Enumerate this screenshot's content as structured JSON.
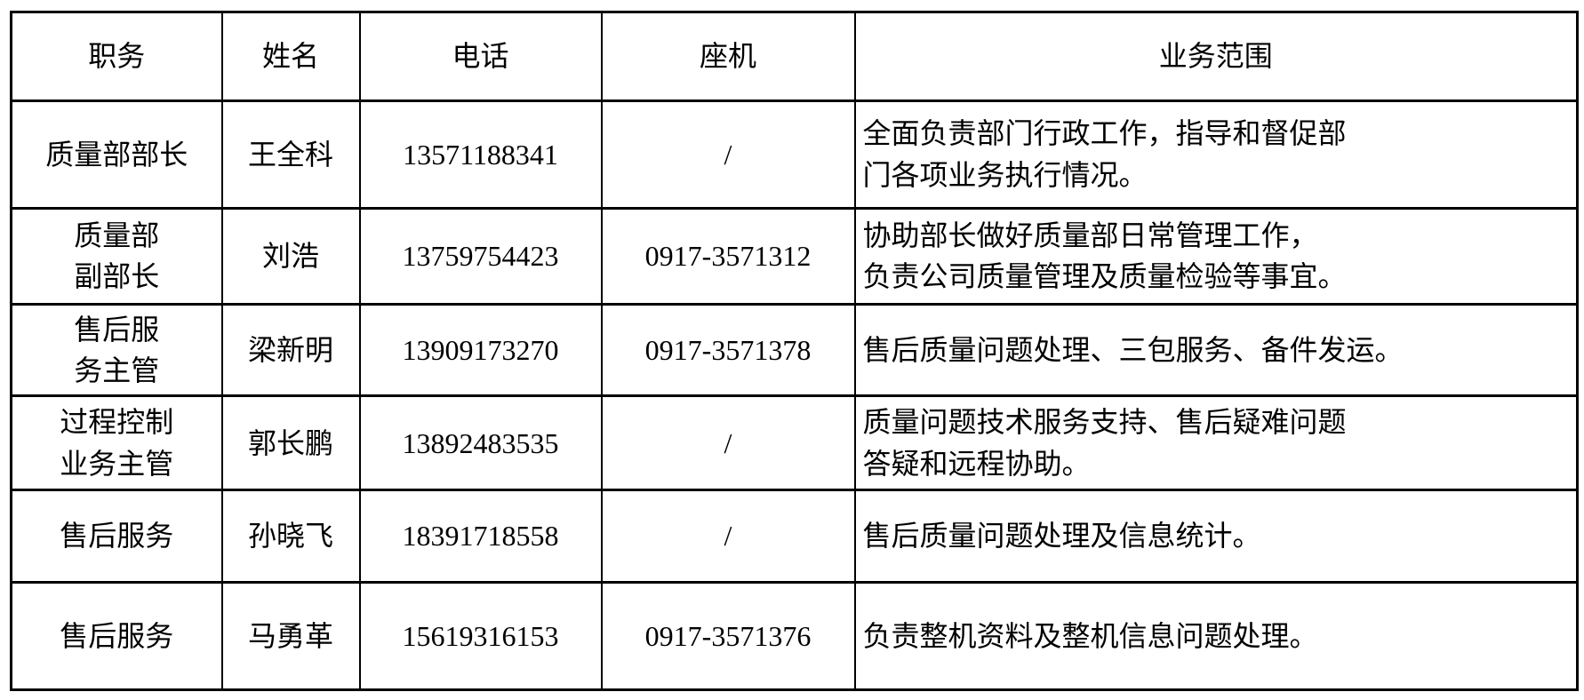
{
  "table": {
    "border_color": "#000000",
    "background_color": "#ffffff",
    "headers": {
      "position": "职务",
      "name": "姓名",
      "phone": "电话",
      "landline": "座机",
      "scope": "业务范围"
    },
    "rows": [
      {
        "position": "质量部部长",
        "name": "王全科",
        "phone": "13571188341",
        "landline": "/",
        "scope": "全面负责部门行政工作，指导和督促部\n门各项业务执行情况。"
      },
      {
        "position": "质量部\n副部长",
        "name": "刘浩",
        "phone": "13759754423",
        "landline": "0917-3571312",
        "scope": "协助部长做好质量部日常管理工作，\n负责公司质量管理及质量检验等事宜。"
      },
      {
        "position": "售后服\n务主管",
        "name": "梁新明",
        "phone": "13909173270",
        "landline": "0917-3571378",
        "scope": "售后质量问题处理、三包服务、备件发运。"
      },
      {
        "position": "过程控制\n业务主管",
        "name": "郭长鹏",
        "phone": "13892483535",
        "landline": "/",
        "scope": "质量问题技术服务支持、售后疑难问题\n答疑和远程协助。"
      },
      {
        "position": "售后服务",
        "name": "孙晓飞",
        "phone": "18391718558",
        "landline": "/",
        "scope": "售后质量问题处理及信息统计。"
      },
      {
        "position": "售后服务",
        "name": "马勇革",
        "phone": "15619316153",
        "landline": "0917-3571376",
        "scope": "负责整机资料及整机信息问题处理。"
      }
    ]
  }
}
